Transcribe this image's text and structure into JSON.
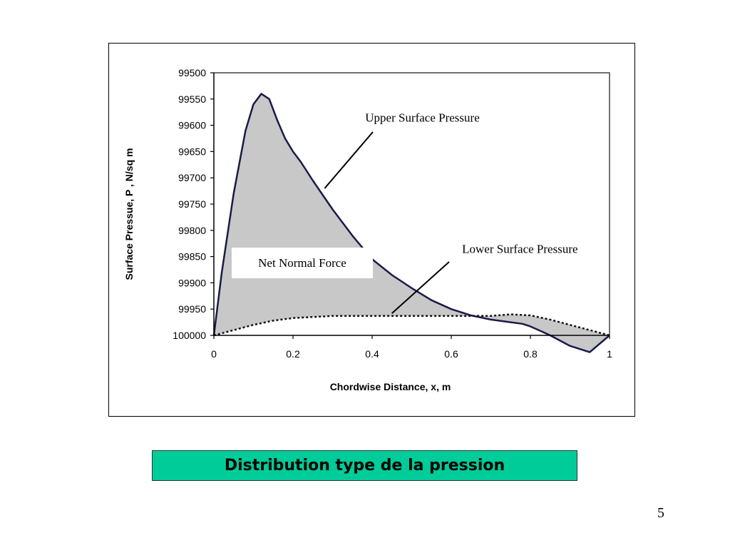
{
  "slide": {
    "caption": "Distribution type de la pression",
    "page_number": "5"
  },
  "chart_data": {
    "type": "area",
    "title": "",
    "xlabel": "Chordwise Distance, x, m",
    "ylabel": "Surface Pressue, P , N/sq m",
    "xlim": [
      0,
      1
    ],
    "ylim": [
      100000,
      99500
    ],
    "y_axis_inverted": true,
    "x_ticks": [
      "0",
      "0.2",
      "0.4",
      "0.6",
      "0.8",
      "1"
    ],
    "y_ticks": [
      "99500",
      "99550",
      "99600",
      "99650",
      "99700",
      "99750",
      "99800",
      "99850",
      "99900",
      "99950",
      "100000"
    ],
    "legend": "none",
    "grid": false,
    "fill_between_series": true,
    "colors": {
      "upper": "#1a1a4a",
      "lower": "#111111",
      "fill": "#c8c8c8"
    },
    "series": [
      {
        "name": "Upper Surface Pressure",
        "style": "solid",
        "x": [
          0,
          0.02,
          0.05,
          0.08,
          0.1,
          0.12,
          0.14,
          0.16,
          0.18,
          0.2,
          0.22,
          0.25,
          0.3,
          0.35,
          0.4,
          0.45,
          0.5,
          0.55,
          0.6,
          0.65,
          0.7,
          0.75,
          0.78,
          0.8,
          0.83,
          0.85,
          0.9,
          0.95,
          1
        ],
        "y": [
          100000,
          99880,
          99730,
          99610,
          99560,
          99540,
          99550,
          99590,
          99625,
          99650,
          99670,
          99705,
          99760,
          99810,
          99855,
          99885,
          99910,
          99933,
          99950,
          99962,
          99970,
          99975,
          99978,
          99983,
          99993,
          100000,
          100020,
          100032,
          100000
        ]
      },
      {
        "name": "Lower Surface Pressure",
        "style": "dotted",
        "x": [
          0,
          0.05,
          0.1,
          0.15,
          0.2,
          0.25,
          0.3,
          0.35,
          0.4,
          0.5,
          0.6,
          0.7,
          0.75,
          0.8,
          0.85,
          0.9,
          0.95,
          1
        ],
        "y": [
          100000,
          99990,
          99980,
          99972,
          99967,
          99965,
          99963,
          99963,
          99963,
          99963,
          99963,
          99963,
          99960,
          99962,
          99970,
          99980,
          99990,
          100000
        ]
      }
    ],
    "annotations": [
      {
        "text": "Upper Surface Pressure",
        "x": 0.5,
        "y": 99585,
        "pointer": {
          "x": 0.28,
          "y": 99720
        }
      },
      {
        "text": "Lower Surface Pressure",
        "x": 0.77,
        "y": 99835,
        "pointer": {
          "x": 0.45,
          "y": 99958
        }
      },
      {
        "text": "Net Normal Force",
        "x": 0.16,
        "y": 99853,
        "boxed": true
      }
    ]
  }
}
